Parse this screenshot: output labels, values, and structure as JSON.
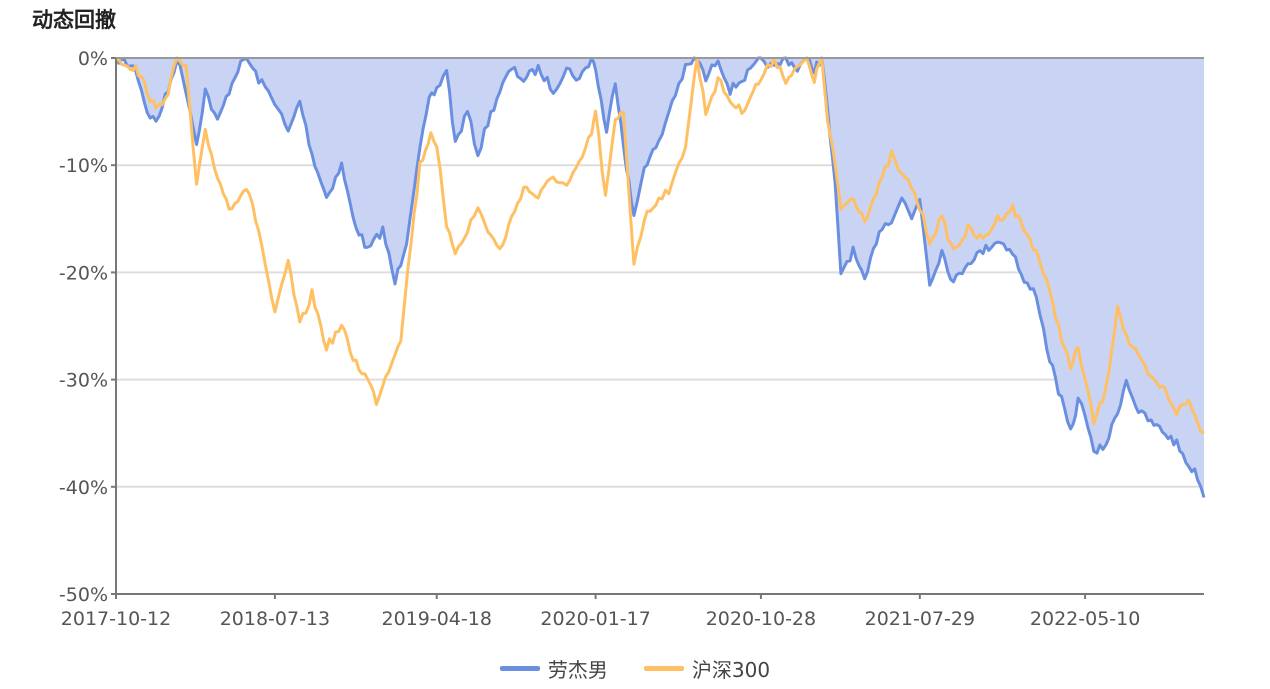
{
  "chart_data": {
    "type": "line",
    "title": "动态回撤",
    "ylim": [
      -50,
      0
    ],
    "yticks": [
      "0%",
      "-10%",
      "-20%",
      "-30%",
      "-40%",
      "-50%"
    ],
    "yvalues": [
      0,
      -10,
      -20,
      -30,
      -40,
      -50
    ],
    "xticks": [
      "2017-10-12",
      "2018-07-13",
      "2019-04-18",
      "2020-01-17",
      "2020-10-28",
      "2021-07-29",
      "2022-05-10"
    ],
    "xlim": [
      "2017-10-12",
      "2022-12-01"
    ],
    "grid": true,
    "legend_position": "bottom-center",
    "series": [
      {
        "name": "劳杰男",
        "color": "#6b8fe0",
        "fill": "#c9d4f5",
        "area": true,
        "points": [
          [
            "2017-10-12",
            0
          ],
          [
            "2017-11-15",
            -1
          ],
          [
            "2017-12-05",
            -5
          ],
          [
            "2017-12-20",
            -6
          ],
          [
            "2018-01-10",
            -3
          ],
          [
            "2018-01-25",
            0
          ],
          [
            "2018-02-10",
            -3
          ],
          [
            "2018-02-28",
            -8
          ],
          [
            "2018-03-15",
            -3
          ],
          [
            "2018-04-05",
            -6
          ],
          [
            "2018-04-25",
            -3
          ],
          [
            "2018-05-10",
            -1
          ],
          [
            "2018-05-25",
            0
          ],
          [
            "2018-06-15",
            -2
          ],
          [
            "2018-07-13",
            -4
          ],
          [
            "2018-08-05",
            -7
          ],
          [
            "2018-08-25",
            -4
          ],
          [
            "2018-09-15",
            -9
          ],
          [
            "2018-10-10",
            -13
          ],
          [
            "2018-11-05",
            -10
          ],
          [
            "2018-11-25",
            -15
          ],
          [
            "2018-12-20",
            -18
          ],
          [
            "2019-01-15",
            -16
          ],
          [
            "2019-02-05",
            -21
          ],
          [
            "2019-02-25",
            -17
          ],
          [
            "2019-03-15",
            -10
          ],
          [
            "2019-04-05",
            -4
          ],
          [
            "2019-04-18",
            -3
          ],
          [
            "2019-05-05",
            -1
          ],
          [
            "2019-05-20",
            -8
          ],
          [
            "2019-06-10",
            -5
          ],
          [
            "2019-06-28",
            -9
          ],
          [
            "2019-07-15",
            -6
          ],
          [
            "2019-08-05",
            -3
          ],
          [
            "2019-08-25",
            -1
          ],
          [
            "2019-09-15",
            -2
          ],
          [
            "2019-10-10",
            -1
          ],
          [
            "2019-11-05",
            -3
          ],
          [
            "2019-11-28",
            -1
          ],
          [
            "2019-12-20",
            -2
          ],
          [
            "2020-01-10",
            0
          ],
          [
            "2020-01-17",
            -1
          ],
          [
            "2020-02-05",
            -7
          ],
          [
            "2020-02-20",
            -2
          ],
          [
            "2020-03-10",
            -10
          ],
          [
            "2020-03-23",
            -15
          ],
          [
            "2020-04-10",
            -10
          ],
          [
            "2020-05-05",
            -8
          ],
          [
            "2020-05-28",
            -4
          ],
          [
            "2020-06-20",
            -1
          ],
          [
            "2020-07-10",
            0
          ],
          [
            "2020-07-25",
            -2
          ],
          [
            "2020-08-15",
            0
          ],
          [
            "2020-09-05",
            -3
          ],
          [
            "2020-09-25",
            -2
          ],
          [
            "2020-10-15",
            -1
          ],
          [
            "2020-10-28",
            0
          ],
          [
            "2020-11-20",
            -1
          ],
          [
            "2020-12-10",
            0
          ],
          [
            "2020-12-30",
            -1
          ],
          [
            "2021-01-15",
            0
          ],
          [
            "2021-01-28",
            -1
          ],
          [
            "2021-02-10",
            0
          ],
          [
            "2021-02-20",
            -5
          ],
          [
            "2021-03-05",
            -12
          ],
          [
            "2021-03-15",
            -20
          ],
          [
            "2021-04-05",
            -18
          ],
          [
            "2021-04-25",
            -21
          ],
          [
            "2021-05-20",
            -16
          ],
          [
            "2021-06-10",
            -15
          ],
          [
            "2021-06-28",
            -13
          ],
          [
            "2021-07-15",
            -15
          ],
          [
            "2021-07-29",
            -13
          ],
          [
            "2021-08-15",
            -21
          ],
          [
            "2021-09-05",
            -18
          ],
          [
            "2021-09-25",
            -21
          ],
          [
            "2021-10-20",
            -19
          ],
          [
            "2021-11-15",
            -18
          ],
          [
            "2021-12-10",
            -17
          ],
          [
            "2022-01-05",
            -18
          ],
          [
            "2022-01-25",
            -21
          ],
          [
            "2022-02-15",
            -22
          ],
          [
            "2022-03-05",
            -27
          ],
          [
            "2022-03-20",
            -30
          ],
          [
            "2022-04-15",
            -35
          ],
          [
            "2022-04-28",
            -32
          ],
          [
            "2022-05-10",
            -33
          ],
          [
            "2022-05-25",
            -37
          ],
          [
            "2022-06-15",
            -36
          ],
          [
            "2022-07-05",
            -33
          ],
          [
            "2022-07-20",
            -30
          ],
          [
            "2022-08-10",
            -33
          ],
          [
            "2022-09-01",
            -34
          ],
          [
            "2022-09-25",
            -35
          ],
          [
            "2022-10-15",
            -36
          ],
          [
            "2022-11-05",
            -38
          ],
          [
            "2022-11-20",
            -39
          ],
          [
            "2022-12-01",
            -41
          ]
        ]
      },
      {
        "name": "沪深300",
        "color": "#ffc063",
        "area": false,
        "points": [
          [
            "2017-10-12",
            0
          ],
          [
            "2017-11-15",
            -1
          ],
          [
            "2017-12-05",
            -3
          ],
          [
            "2017-12-20",
            -5
          ],
          [
            "2018-01-10",
            -3
          ],
          [
            "2018-01-25",
            0
          ],
          [
            "2018-02-10",
            -1
          ],
          [
            "2018-02-28",
            -12
          ],
          [
            "2018-03-15",
            -7
          ],
          [
            "2018-04-05",
            -11
          ],
          [
            "2018-04-25",
            -14
          ],
          [
            "2018-05-10",
            -13
          ],
          [
            "2018-05-25",
            -12
          ],
          [
            "2018-06-15",
            -16
          ],
          [
            "2018-07-13",
            -24
          ],
          [
            "2018-08-05",
            -19
          ],
          [
            "2018-08-25",
            -25
          ],
          [
            "2018-09-15",
            -22
          ],
          [
            "2018-10-10",
            -27
          ],
          [
            "2018-11-05",
            -25
          ],
          [
            "2018-11-25",
            -28
          ],
          [
            "2018-12-20",
            -30
          ],
          [
            "2019-01-04",
            -32
          ],
          [
            "2019-01-25",
            -29
          ],
          [
            "2019-02-15",
            -26
          ],
          [
            "2019-03-05",
            -17
          ],
          [
            "2019-03-20",
            -10
          ],
          [
            "2019-04-08",
            -7
          ],
          [
            "2019-04-18",
            -8
          ],
          [
            "2019-05-05",
            -16
          ],
          [
            "2019-05-20",
            -18
          ],
          [
            "2019-06-10",
            -16
          ],
          [
            "2019-06-28",
            -14
          ],
          [
            "2019-07-15",
            -16
          ],
          [
            "2019-08-05",
            -18
          ],
          [
            "2019-08-25",
            -15
          ],
          [
            "2019-09-15",
            -12
          ],
          [
            "2019-10-10",
            -13
          ],
          [
            "2019-11-05",
            -11
          ],
          [
            "2019-11-28",
            -12
          ],
          [
            "2019-12-20",
            -10
          ],
          [
            "2020-01-10",
            -7
          ],
          [
            "2020-01-17",
            -5
          ],
          [
            "2020-02-03",
            -13
          ],
          [
            "2020-02-20",
            -6
          ],
          [
            "2020-03-05",
            -5
          ],
          [
            "2020-03-23",
            -19
          ],
          [
            "2020-04-10",
            -15
          ],
          [
            "2020-05-05",
            -13
          ],
          [
            "2020-05-28",
            -12
          ],
          [
            "2020-06-20",
            -8
          ],
          [
            "2020-07-10",
            0
          ],
          [
            "2020-07-25",
            -5
          ],
          [
            "2020-08-15",
            -2
          ],
          [
            "2020-09-05",
            -4
          ],
          [
            "2020-09-25",
            -5
          ],
          [
            "2020-10-15",
            -3
          ],
          [
            "2020-10-28",
            -2
          ],
          [
            "2020-11-20",
            0
          ],
          [
            "2020-12-10",
            -2
          ],
          [
            "2020-12-30",
            -1
          ],
          [
            "2021-01-15",
            0
          ],
          [
            "2021-01-28",
            -2
          ],
          [
            "2021-02-10",
            0
          ],
          [
            "2021-02-20",
            -6
          ],
          [
            "2021-03-05",
            -10
          ],
          [
            "2021-03-15",
            -14
          ],
          [
            "2021-04-05",
            -13
          ],
          [
            "2021-04-25",
            -15
          ],
          [
            "2021-05-20",
            -12
          ],
          [
            "2021-06-10",
            -9
          ],
          [
            "2021-06-28",
            -11
          ],
          [
            "2021-07-15",
            -12
          ],
          [
            "2021-07-29",
            -14
          ],
          [
            "2021-08-15",
            -17
          ],
          [
            "2021-09-05",
            -15
          ],
          [
            "2021-09-25",
            -18
          ],
          [
            "2021-10-20",
            -16
          ],
          [
            "2021-11-15",
            -17
          ],
          [
            "2021-12-10",
            -15
          ],
          [
            "2022-01-05",
            -14
          ],
          [
            "2022-01-25",
            -16
          ],
          [
            "2022-02-15",
            -18
          ],
          [
            "2022-03-05",
            -21
          ],
          [
            "2022-03-20",
            -24
          ],
          [
            "2022-04-15",
            -29
          ],
          [
            "2022-04-28",
            -27
          ],
          [
            "2022-05-10",
            -30
          ],
          [
            "2022-05-25",
            -34
          ],
          [
            "2022-06-15",
            -31
          ],
          [
            "2022-07-05",
            -23
          ],
          [
            "2022-07-20",
            -26
          ],
          [
            "2022-08-10",
            -28
          ],
          [
            "2022-09-01",
            -30
          ],
          [
            "2022-09-25",
            -31
          ],
          [
            "2022-10-15",
            -33
          ],
          [
            "2022-11-05",
            -32
          ],
          [
            "2022-11-20",
            -34
          ],
          [
            "2022-12-01",
            -35
          ]
        ]
      }
    ]
  }
}
